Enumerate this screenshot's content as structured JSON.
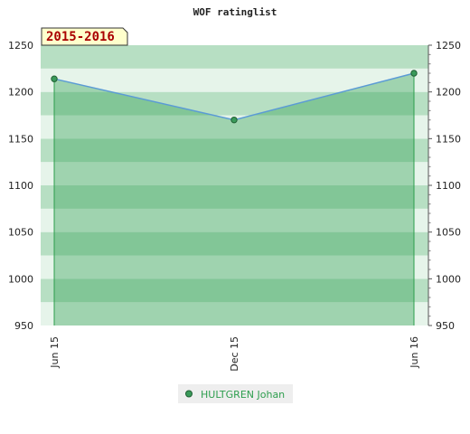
{
  "chart_data": {
    "type": "area",
    "title": "WOF ratinglist",
    "period_label": "2015-2016",
    "categories": [
      "Jun 15",
      "Dec 15",
      "Jun 16"
    ],
    "series": [
      {
        "name": "HULTGREN Johan",
        "values": [
          1214,
          1170,
          1220
        ]
      }
    ],
    "ylim": [
      950,
      1250
    ],
    "y_ticks": [
      950,
      1000,
      1050,
      1100,
      1150,
      1200,
      1250
    ],
    "y_tick_labels": [
      "950",
      "1000",
      "1050",
      "1100",
      "1150",
      "1200",
      "1250"
    ],
    "y_axis_both_sides": true,
    "legend_position": "bottom-center",
    "grid": "alternating horizontal bands",
    "colors": {
      "line": "#5b9bd5",
      "marker": "#3a9a5a",
      "fill_below": "#2e9e4e",
      "band_light": "#e6f4ea",
      "band_dark": "#b7dfc3",
      "period_bg": "#ffffcc",
      "period_text": "#aa0000",
      "legend_text": "#2e9e4e"
    }
  }
}
